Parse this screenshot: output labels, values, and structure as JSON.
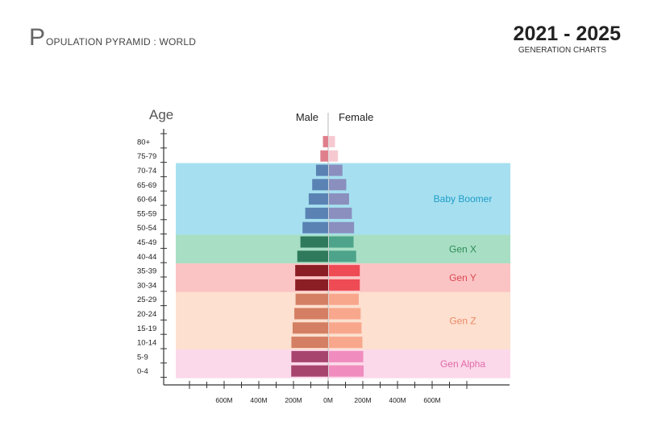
{
  "header": {
    "title_initial": "P",
    "title_rest": "OPULATION PYRAMID : WORLD",
    "year_range": "2021 - 2025",
    "subtitle": "GENERATION CHARTS"
  },
  "chart_data": {
    "type": "bar",
    "orientation": "horizontal-pyramid",
    "ylabel": "Age",
    "left_label": "Male",
    "right_label": "Female",
    "age_groups": [
      "80+",
      "75-79",
      "70-74",
      "65-69",
      "60-64",
      "55-59",
      "50-54",
      "45-49",
      "40-44",
      "35-39",
      "30-34",
      "25-29",
      "20-24",
      "15-19",
      "10-14",
      "5-9",
      "0-4"
    ],
    "series": [
      {
        "name": "Male",
        "values": [
          30,
          45,
          70,
          92,
          112,
          132,
          148,
          160,
          178,
          190,
          190,
          188,
          195,
          205,
          212,
          212,
          213
        ]
      },
      {
        "name": "Female",
        "values": [
          35,
          52,
          78,
          100,
          116,
          132,
          145,
          142,
          157,
          178,
          178,
          172,
          183,
          188,
          193,
          198,
          200
        ]
      }
    ],
    "x_ticks": [
      "600M",
      "400M",
      "200M",
      "0M",
      "200M",
      "400M",
      "600M"
    ],
    "x_tick_values": [
      -600,
      -400,
      -200,
      0,
      200,
      400,
      600
    ],
    "xlim": [
      -800,
      800
    ],
    "generations": [
      {
        "name": "Baby Boomer",
        "from": "70-74",
        "to": "50-54",
        "band_color": "#a6e0f0",
        "label_color": "#1f9cc8",
        "bar_male": "#5a83b4",
        "bar_female": "#8a8fbe"
      },
      {
        "name": "Gen X",
        "from": "45-49",
        "to": "40-44",
        "band_color": "#a8dfc4",
        "label_color": "#2e8a58",
        "bar_male": "#2f7a5c",
        "bar_female": "#4da48a"
      },
      {
        "name": "Gen Y",
        "from": "35-39",
        "to": "30-34",
        "band_color": "#fbc4c4",
        "label_color": "#d94a52",
        "bar_male": "#8a1e24",
        "bar_female": "#ee4b55"
      },
      {
        "name": "Gen Z",
        "from": "25-29",
        "to": "10-14",
        "band_color": "#fde0cf",
        "label_color": "#e98a68",
        "bar_male": "#d47f63",
        "bar_female": "#f8a78d"
      },
      {
        "name": "Gen Alpha",
        "from": "5-9",
        "to": "0-4",
        "band_color": "#fcd9ea",
        "label_color": "#e06aa8",
        "bar_male": "#a8456f",
        "bar_female": "#f08cbe"
      }
    ],
    "top_bar_colors": {
      "male": "#e07f8c",
      "female": "#f6c9d0"
    }
  }
}
